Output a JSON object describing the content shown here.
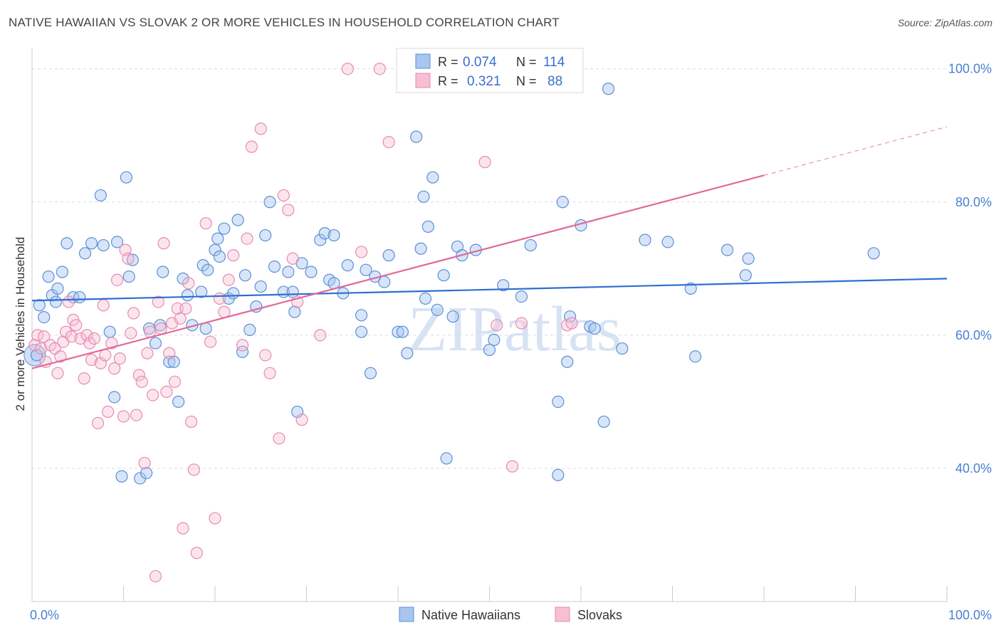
{
  "title": "NATIVE HAWAIIAN VS SLOVAK 2 OR MORE VEHICLES IN HOUSEHOLD CORRELATION CHART",
  "source": "Source: ZipAtlas.com",
  "watermark": "ZIPatlas",
  "colors": {
    "blue": "#5b8fd8",
    "blue_fill": "#a9c6f0",
    "blue_line": "#2f6fd0",
    "pink": "#e88ab0",
    "pink_fill": "#f6bfd3",
    "pink_line": "#e06a98",
    "tick": "#4a7fd4"
  },
  "chart_data": {
    "type": "scatter",
    "ylabel": "2 or more Vehicles in Household",
    "x_tick_labels": [
      "0.0%",
      "100.0%"
    ],
    "y_tick_labels": [
      "40.0%",
      "60.0%",
      "80.0%",
      "100.0%"
    ],
    "xlim": [
      0,
      100
    ],
    "ylim": [
      20,
      102
    ],
    "legend": {
      "r_label": "R =",
      "n_label": "N =",
      "rows": [
        {
          "series": "Native Hawaiians",
          "r": "0.074",
          "n": "114"
        },
        {
          "series": "Slovaks",
          "r": "0.321",
          "n": "88"
        }
      ]
    },
    "series": [
      {
        "name": "Native Hawaiians",
        "trend": {
          "x0": 0,
          "y0": 65.2,
          "x1": 100,
          "y1": 68.5
        },
        "points": [
          [
            0.5,
            57
          ],
          [
            0.8,
            64.5
          ],
          [
            1.3,
            62.7
          ],
          [
            1.8,
            68.8
          ],
          [
            2.2,
            66
          ],
          [
            2.6,
            65
          ],
          [
            2.8,
            67
          ],
          [
            3.3,
            69.5
          ],
          [
            3.8,
            73.8
          ],
          [
            4.5,
            65.7
          ],
          [
            5.2,
            65.7
          ],
          [
            5.8,
            72.3
          ],
          [
            6.5,
            73.8
          ],
          [
            7.5,
            81
          ],
          [
            7.8,
            73.5
          ],
          [
            8.5,
            60.5
          ],
          [
            9,
            50.7
          ],
          [
            9.3,
            74
          ],
          [
            9.8,
            38.8
          ],
          [
            10.3,
            83.7
          ],
          [
            10.6,
            68.8
          ],
          [
            11,
            71.3
          ],
          [
            11.8,
            38.5
          ],
          [
            12.5,
            39.3
          ],
          [
            12.8,
            61
          ],
          [
            13.5,
            58.8
          ],
          [
            14,
            61.5
          ],
          [
            14.3,
            69.5
          ],
          [
            15,
            56
          ],
          [
            15.5,
            56
          ],
          [
            16,
            50
          ],
          [
            16.5,
            68.5
          ],
          [
            17,
            66
          ],
          [
            17.5,
            61.5
          ],
          [
            18.5,
            66.5
          ],
          [
            18.7,
            70.5
          ],
          [
            19,
            61
          ],
          [
            19.2,
            69.8
          ],
          [
            20,
            72.8
          ],
          [
            20.3,
            74.5
          ],
          [
            20.5,
            71.8
          ],
          [
            21,
            76
          ],
          [
            21.5,
            65.5
          ],
          [
            22,
            66.3
          ],
          [
            22.5,
            77.3
          ],
          [
            23,
            57.5
          ],
          [
            23.3,
            69
          ],
          [
            23.8,
            60.8
          ],
          [
            24.5,
            64.3
          ],
          [
            25,
            67.3
          ],
          [
            25.5,
            75
          ],
          [
            26,
            80
          ],
          [
            26.5,
            70.3
          ],
          [
            27.5,
            66.5
          ],
          [
            28,
            69.5
          ],
          [
            28.5,
            66.5
          ],
          [
            28.7,
            63.5
          ],
          [
            29,
            48.5
          ],
          [
            29.5,
            70.8
          ],
          [
            30.5,
            69.5
          ],
          [
            31.5,
            74.3
          ],
          [
            32,
            75.3
          ],
          [
            32.5,
            68.3
          ],
          [
            33,
            75
          ],
          [
            33,
            67.8
          ],
          [
            34,
            66.3
          ],
          [
            34.5,
            70.5
          ],
          [
            36,
            60.5
          ],
          [
            36,
            63
          ],
          [
            36.5,
            69.8
          ],
          [
            37,
            54.3
          ],
          [
            37.5,
            68.8
          ],
          [
            38.5,
            68
          ],
          [
            39,
            72
          ],
          [
            40,
            60.5
          ],
          [
            40.5,
            60.5
          ],
          [
            41,
            57.3
          ],
          [
            42,
            89.8
          ],
          [
            42.5,
            73
          ],
          [
            42.8,
            80.8
          ],
          [
            43,
            65.5
          ],
          [
            43.3,
            76.3
          ],
          [
            43.8,
            83.7
          ],
          [
            44.3,
            63.8
          ],
          [
            45,
            69
          ],
          [
            45.3,
            41.5
          ],
          [
            46,
            62.8
          ],
          [
            46.5,
            73.3
          ],
          [
            47,
            72
          ],
          [
            48.5,
            72.8
          ],
          [
            50,
            57.8
          ],
          [
            50.5,
            59.3
          ],
          [
            51.5,
            67.5
          ],
          [
            53.5,
            65.8
          ],
          [
            54.5,
            73.5
          ],
          [
            57.5,
            39
          ],
          [
            57.5,
            50
          ],
          [
            58,
            80
          ],
          [
            58.5,
            56
          ],
          [
            58.8,
            62.8
          ],
          [
            60,
            76.5
          ],
          [
            61,
            61.3
          ],
          [
            61.5,
            61
          ],
          [
            62.5,
            47
          ],
          [
            63,
            97
          ],
          [
            64.5,
            58
          ],
          [
            67,
            74.3
          ],
          [
            69.5,
            74
          ],
          [
            72,
            67
          ],
          [
            72.5,
            56.8
          ],
          [
            76,
            72.8
          ],
          [
            78,
            69
          ],
          [
            78.3,
            71.5
          ],
          [
            92,
            72.3
          ]
        ]
      },
      {
        "name": "Slovaks",
        "trend": {
          "x0": 0,
          "y0": 55,
          "x1": 80,
          "y1": 84
        },
        "trend_ext": {
          "x0": 80,
          "y0": 84,
          "x1": 100,
          "y1": 91.3
        },
        "points": [
          [
            0.3,
            58.5
          ],
          [
            0.6,
            60
          ],
          [
            1,
            58
          ],
          [
            1.3,
            59.8
          ],
          [
            1.5,
            56
          ],
          [
            2,
            58.5
          ],
          [
            2.5,
            58
          ],
          [
            2.8,
            54.3
          ],
          [
            3.1,
            56.8
          ],
          [
            3.4,
            59
          ],
          [
            3.7,
            60.5
          ],
          [
            4,
            65
          ],
          [
            4.3,
            59.8
          ],
          [
            4.5,
            62.3
          ],
          [
            4.8,
            61.5
          ],
          [
            5.3,
            59.5
          ],
          [
            5.7,
            53.5
          ],
          [
            6,
            60
          ],
          [
            6.3,
            58.8
          ],
          [
            6.5,
            56.3
          ],
          [
            6.8,
            59.5
          ],
          [
            7.2,
            46.8
          ],
          [
            7.5,
            55.8
          ],
          [
            7.8,
            64.5
          ],
          [
            8,
            57
          ],
          [
            8.3,
            48.5
          ],
          [
            8.7,
            58.8
          ],
          [
            9,
            55
          ],
          [
            9.3,
            68.3
          ],
          [
            9.6,
            56.5
          ],
          [
            10,
            47.8
          ],
          [
            10.2,
            72.8
          ],
          [
            10.5,
            71.5
          ],
          [
            10.8,
            60.3
          ],
          [
            11.1,
            63.3
          ],
          [
            11.4,
            48
          ],
          [
            11.7,
            54
          ],
          [
            12,
            53
          ],
          [
            12.3,
            40.8
          ],
          [
            12.6,
            57.3
          ],
          [
            12.9,
            60.5
          ],
          [
            13.2,
            51
          ],
          [
            13.5,
            23.8
          ],
          [
            13.8,
            65
          ],
          [
            14.1,
            61
          ],
          [
            14.4,
            73.8
          ],
          [
            14.7,
            51.5
          ],
          [
            15,
            57.3
          ],
          [
            15.3,
            61.8
          ],
          [
            15.6,
            53
          ],
          [
            15.9,
            64
          ],
          [
            16.2,
            62.5
          ],
          [
            16.5,
            31
          ],
          [
            16.8,
            64
          ],
          [
            17.1,
            67.8
          ],
          [
            17.4,
            47
          ],
          [
            17.7,
            39.8
          ],
          [
            18,
            27.3
          ],
          [
            19,
            76.8
          ],
          [
            19.5,
            59
          ],
          [
            20,
            32.5
          ],
          [
            20.5,
            65.5
          ],
          [
            21,
            63.5
          ],
          [
            21.5,
            68.3
          ],
          [
            22,
            72
          ],
          [
            23,
            58.5
          ],
          [
            23.5,
            74.5
          ],
          [
            24,
            88.3
          ],
          [
            25,
            91
          ],
          [
            25.5,
            57
          ],
          [
            26,
            54.3
          ],
          [
            27,
            44.5
          ],
          [
            27.5,
            81
          ],
          [
            28,
            78.8
          ],
          [
            28.5,
            71.5
          ],
          [
            29,
            65
          ],
          [
            29.5,
            47.3
          ],
          [
            31.5,
            60
          ],
          [
            34.5,
            100
          ],
          [
            36,
            72.5
          ],
          [
            38,
            100
          ],
          [
            39,
            89
          ],
          [
            49.5,
            86
          ],
          [
            50.8,
            61.5
          ],
          [
            52.5,
            40.3
          ],
          [
            53.5,
            61.8
          ],
          [
            58.5,
            61.5
          ],
          [
            59,
            61.8
          ]
        ]
      }
    ]
  },
  "bottom_legend": [
    "Native Hawaiians",
    "Slovaks"
  ]
}
